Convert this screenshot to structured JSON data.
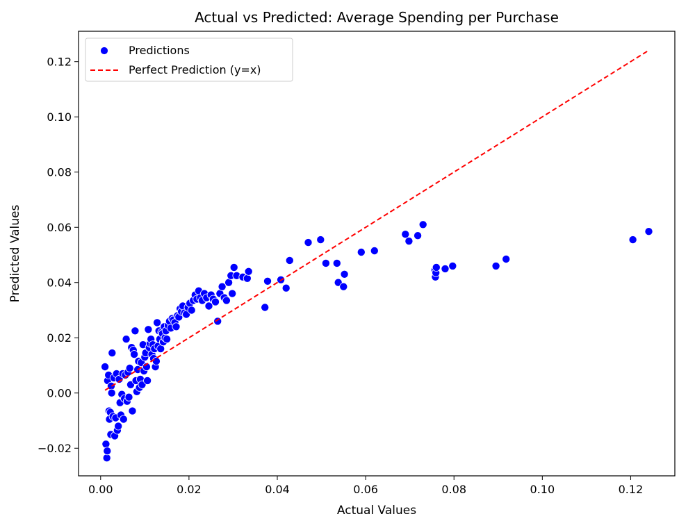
{
  "chart_data": {
    "type": "scatter",
    "title": "Actual vs Predicted: Average Spending per Purchase",
    "xlabel": "Actual Values",
    "ylabel": "Predicted Values",
    "xlim": [
      -0.005,
      0.13
    ],
    "ylim": [
      -0.03,
      0.131
    ],
    "xticks": [
      0.0,
      0.02,
      0.04,
      0.06,
      0.08,
      0.1,
      0.12
    ],
    "xtick_labels": [
      "0.00",
      "0.02",
      "0.04",
      "0.06",
      "0.08",
      "0.10",
      "0.12"
    ],
    "yticks": [
      -0.02,
      0.0,
      0.02,
      0.04,
      0.06,
      0.08,
      0.1,
      0.12
    ],
    "ytick_labels": [
      "−0.02",
      "0.00",
      "0.02",
      "0.04",
      "0.06",
      "0.08",
      "0.10",
      "0.12"
    ],
    "grid": false,
    "legend_position": "top-left",
    "series": [
      {
        "name": "Predictions",
        "kind": "scatter",
        "color": "#0000ff",
        "edgecolor": "#ffffff",
        "points": [
          [
            0.001,
            0.0095
          ],
          [
            0.0012,
            -0.0185
          ],
          [
            0.0014,
            -0.0235
          ],
          [
            0.0015,
            -0.021
          ],
          [
            0.0016,
            0.0045
          ],
          [
            0.0018,
            0.0065
          ],
          [
            0.0019,
            -0.0065
          ],
          [
            0.002,
            -0.0095
          ],
          [
            0.0022,
            -0.007
          ],
          [
            0.0023,
            -0.015
          ],
          [
            0.0024,
            0.0025
          ],
          [
            0.0025,
            0.0
          ],
          [
            0.0026,
            0.0145
          ],
          [
            0.0028,
            -0.0085
          ],
          [
            0.003,
            0.0055
          ],
          [
            0.0032,
            -0.0155
          ],
          [
            0.0034,
            -0.009
          ],
          [
            0.0036,
            0.007
          ],
          [
            0.0038,
            -0.0135
          ],
          [
            0.004,
            -0.012
          ],
          [
            0.0042,
            0.005
          ],
          [
            0.0044,
            -0.0035
          ],
          [
            0.0046,
            -0.008
          ],
          [
            0.0048,
            -0.0005
          ],
          [
            0.005,
            0.007
          ],
          [
            0.0052,
            -0.0095
          ],
          [
            0.0054,
            -0.002
          ],
          [
            0.0056,
            0.0065
          ],
          [
            0.0058,
            0.0195
          ],
          [
            0.006,
            -0.003
          ],
          [
            0.0062,
            0.0075
          ],
          [
            0.0064,
            -0.0015
          ],
          [
            0.0066,
            0.009
          ],
          [
            0.0068,
            0.003
          ],
          [
            0.007,
            0.0165
          ],
          [
            0.0072,
            -0.0065
          ],
          [
            0.0074,
            0.0155
          ],
          [
            0.0076,
            0.014
          ],
          [
            0.0078,
            0.0225
          ],
          [
            0.008,
            0.0045
          ],
          [
            0.0082,
            0.0005
          ],
          [
            0.0084,
            0.0085
          ],
          [
            0.0086,
            0.0115
          ],
          [
            0.0088,
            0.002
          ],
          [
            0.009,
            0.005
          ],
          [
            0.0092,
            0.011
          ],
          [
            0.0094,
            0.003
          ],
          [
            0.0096,
            0.0175
          ],
          [
            0.0098,
            0.008
          ],
          [
            0.01,
            0.013
          ],
          [
            0.0102,
            0.0145
          ],
          [
            0.0104,
            0.0095
          ],
          [
            0.0106,
            0.0045
          ],
          [
            0.0108,
            0.023
          ],
          [
            0.011,
            0.0165
          ],
          [
            0.0112,
            0.018
          ],
          [
            0.0114,
            0.0195
          ],
          [
            0.0116,
            0.014
          ],
          [
            0.0118,
            0.0175
          ],
          [
            0.012,
            0.0125
          ],
          [
            0.0122,
            0.016
          ],
          [
            0.0124,
            0.0095
          ],
          [
            0.0126,
            0.0115
          ],
          [
            0.0128,
            0.0255
          ],
          [
            0.013,
            0.017
          ],
          [
            0.0132,
            0.0225
          ],
          [
            0.0134,
            0.0195
          ],
          [
            0.0136,
            0.016
          ],
          [
            0.0138,
            0.022
          ],
          [
            0.014,
            0.0215
          ],
          [
            0.0142,
            0.0185
          ],
          [
            0.0144,
            0.024
          ],
          [
            0.0146,
            0.02
          ],
          [
            0.0148,
            0.0225
          ],
          [
            0.015,
            0.0195
          ],
          [
            0.0153,
            0.0245
          ],
          [
            0.0156,
            0.026
          ],
          [
            0.0159,
            0.0235
          ],
          [
            0.0162,
            0.027
          ],
          [
            0.0165,
            0.0265
          ],
          [
            0.0168,
            0.0255
          ],
          [
            0.0171,
            0.024
          ],
          [
            0.0174,
            0.028
          ],
          [
            0.0177,
            0.0275
          ],
          [
            0.018,
            0.0305
          ],
          [
            0.0183,
            0.0295
          ],
          [
            0.0186,
            0.0315
          ],
          [
            0.019,
            0.029
          ],
          [
            0.0194,
            0.0285
          ],
          [
            0.0198,
            0.031
          ],
          [
            0.0202,
            0.0325
          ],
          [
            0.0206,
            0.03
          ],
          [
            0.021,
            0.0335
          ],
          [
            0.0214,
            0.0355
          ],
          [
            0.0218,
            0.034
          ],
          [
            0.0222,
            0.037
          ],
          [
            0.0226,
            0.0345
          ],
          [
            0.023,
            0.0335
          ],
          [
            0.0235,
            0.036
          ],
          [
            0.024,
            0.0345
          ],
          [
            0.0245,
            0.0315
          ],
          [
            0.025,
            0.0355
          ],
          [
            0.0255,
            0.034
          ],
          [
            0.026,
            0.033
          ],
          [
            0.0265,
            0.026
          ],
          [
            0.027,
            0.036
          ],
          [
            0.0275,
            0.0385
          ],
          [
            0.028,
            0.0345
          ],
          [
            0.0285,
            0.0335
          ],
          [
            0.029,
            0.04
          ],
          [
            0.0295,
            0.0425
          ],
          [
            0.0298,
            0.036
          ],
          [
            0.0302,
            0.0455
          ],
          [
            0.0308,
            0.0425
          ],
          [
            0.0322,
            0.042
          ],
          [
            0.0332,
            0.0415
          ],
          [
            0.0335,
            0.044
          ],
          [
            0.0372,
            0.031
          ],
          [
            0.0378,
            0.0405
          ],
          [
            0.0408,
            0.041
          ],
          [
            0.042,
            0.038
          ],
          [
            0.0428,
            0.048
          ],
          [
            0.047,
            0.0545
          ],
          [
            0.0498,
            0.0555
          ],
          [
            0.051,
            0.047
          ],
          [
            0.0535,
            0.047
          ],
          [
            0.0538,
            0.04
          ],
          [
            0.055,
            0.0385
          ],
          [
            0.0552,
            0.043
          ],
          [
            0.059,
            0.051
          ],
          [
            0.062,
            0.0515
          ],
          [
            0.069,
            0.0575
          ],
          [
            0.0698,
            0.055
          ],
          [
            0.0718,
            0.057
          ],
          [
            0.073,
            0.061
          ],
          [
            0.0757,
            0.0445
          ],
          [
            0.0758,
            0.042
          ],
          [
            0.0759,
            0.0435
          ],
          [
            0.076,
            0.0455
          ],
          [
            0.078,
            0.045
          ],
          [
            0.0797,
            0.046
          ],
          [
            0.0895,
            0.046
          ],
          [
            0.0918,
            0.0485
          ],
          [
            0.1205,
            0.0555
          ],
          [
            0.1241,
            0.0585
          ]
        ]
      },
      {
        "name": "Perfect Prediction (y=x)",
        "kind": "line",
        "color": "#ff0000",
        "dash": true,
        "points": [
          [
            0.001,
            0.001
          ],
          [
            0.1241,
            0.1241
          ]
        ]
      }
    ]
  }
}
